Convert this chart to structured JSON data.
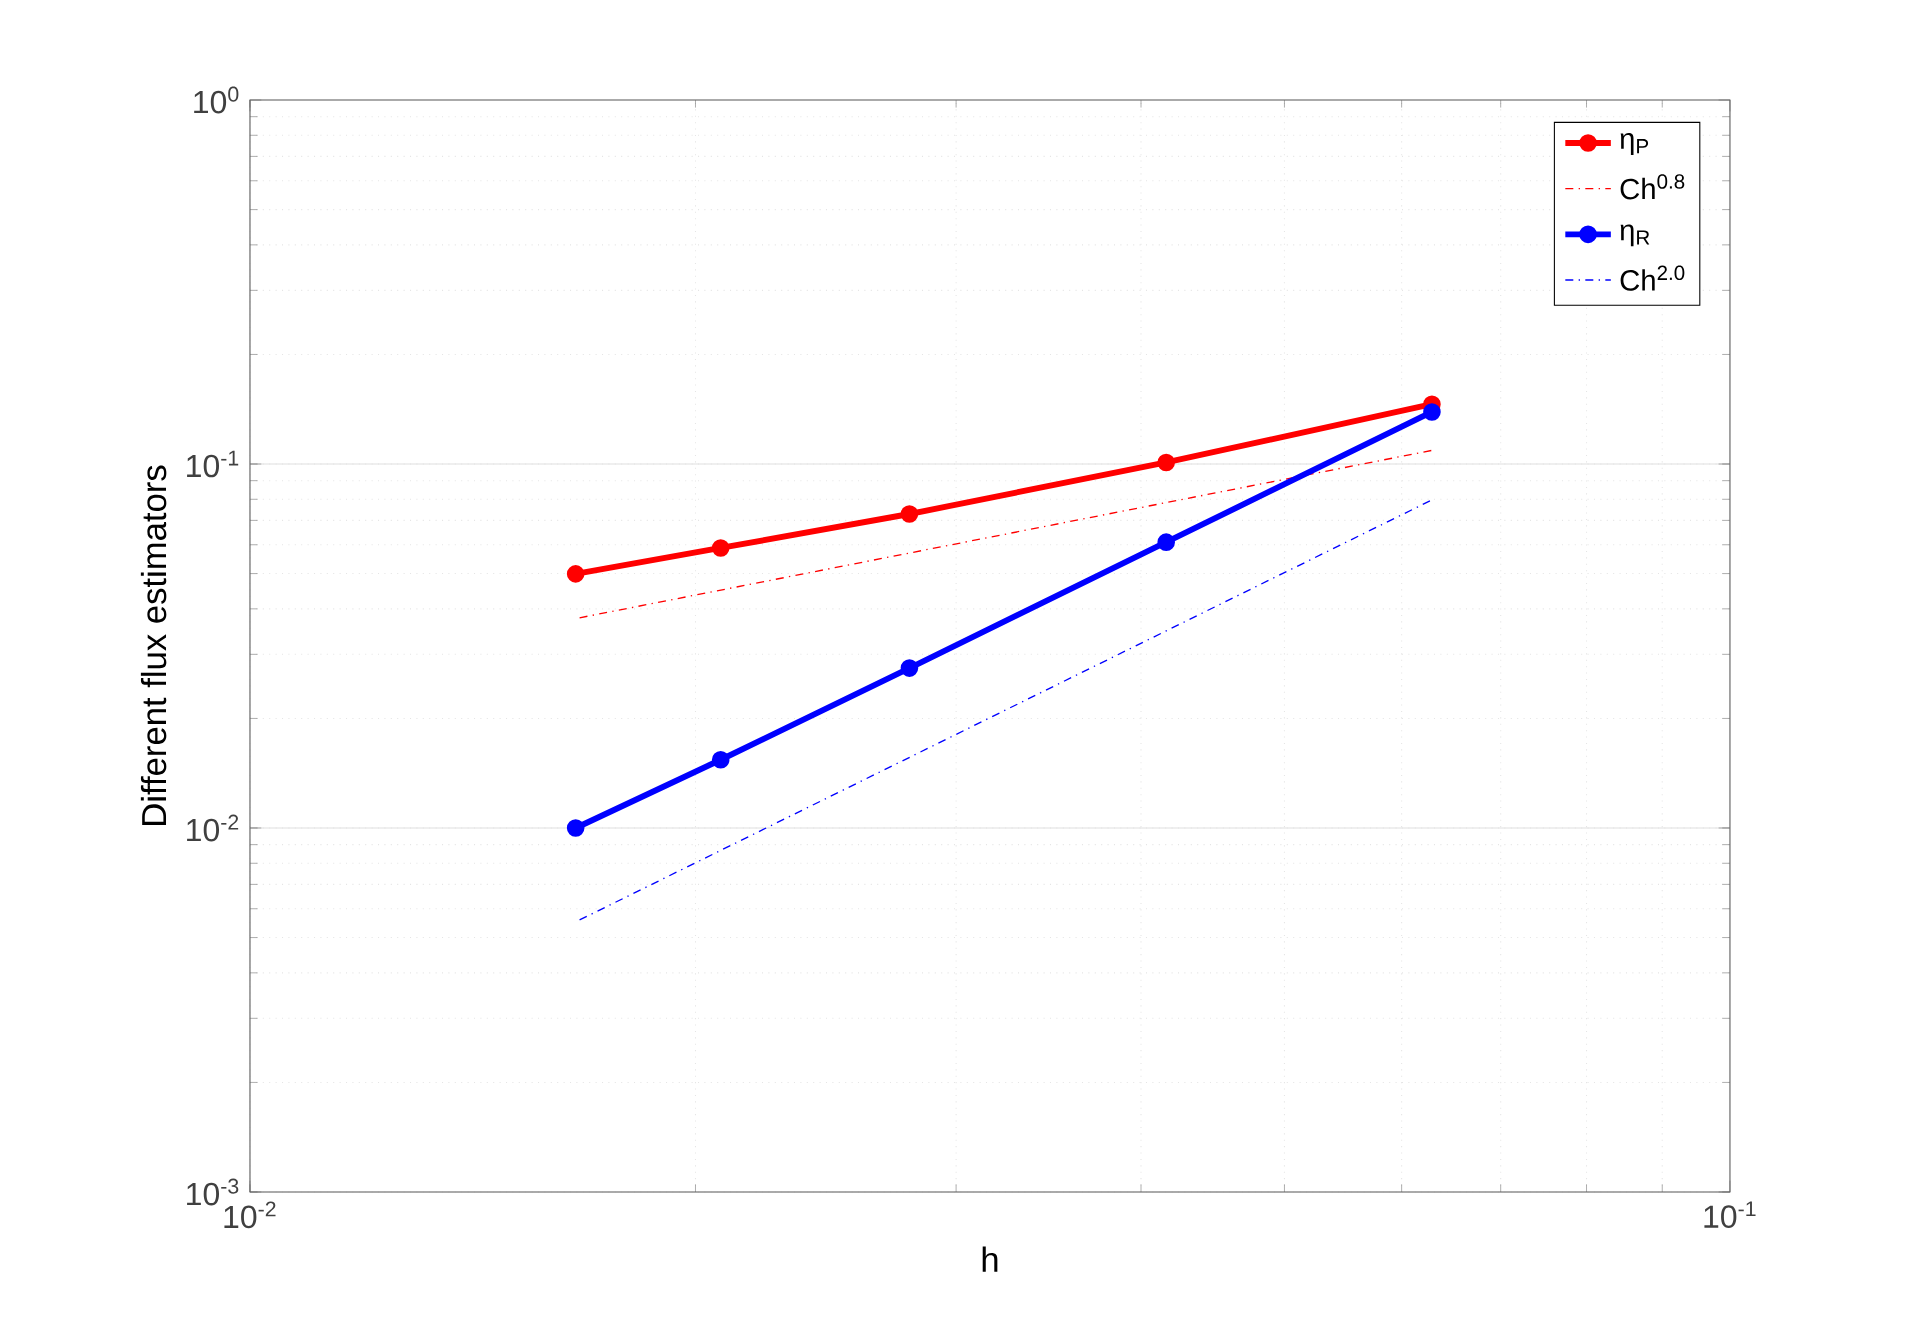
{
  "chart_data": {
    "type": "line",
    "xlabel": "h",
    "ylabel": "Different flux estimators",
    "log": "xy",
    "grid": true,
    "legend": "top right",
    "xlim": [
      0.01,
      0.1
    ],
    "ylim": [
      0.001,
      1
    ],
    "xticks": [
      {
        "value": 0.01,
        "label": "10$^{-2}$"
      },
      {
        "value": 0.1,
        "label": "10$^{-1}$"
      }
    ],
    "yticks": [
      {
        "value": 0.001,
        "label": "10$^{-3}$"
      },
      {
        "value": 0.01,
        "label": "10$^{-2}$"
      },
      {
        "value": 0.1,
        "label": "10$^{-1}$"
      },
      {
        "value": 1,
        "label": "10$^{0}$"
      }
    ],
    "series": [
      {
        "name": "η$_{P}$",
        "color": "#ff0000",
        "marker": "circle",
        "line_style": "solid",
        "x": [
          0.0166,
          0.0208,
          0.0279,
          0.0416,
          0.0629
        ],
        "values": [
          0.0499,
          0.0588,
          0.0729,
          0.101,
          0.146
        ]
      },
      {
        "name": "Ch$^{0.8}$",
        "color": "#ff0000",
        "marker": "none",
        "line_style": "dashdot",
        "x": [
          0.0167,
          0.0629
        ],
        "values": [
          0.0378,
          0.109
        ]
      },
      {
        "name": "η$_{R}$",
        "color": "#0000ff",
        "marker": "circle",
        "line_style": "solid",
        "x": [
          0.0166,
          0.0208,
          0.0279,
          0.0416,
          0.0629
        ],
        "values": [
          0.01,
          0.0154,
          0.0275,
          0.061,
          0.139
        ]
      },
      {
        "name": "Ch$^{2.0}$",
        "color": "#0000ff",
        "marker": "none",
        "line_style": "dashdot",
        "x": [
          0.0167,
          0.0629
        ],
        "values": [
          0.00559,
          0.0797
        ]
      }
    ]
  }
}
